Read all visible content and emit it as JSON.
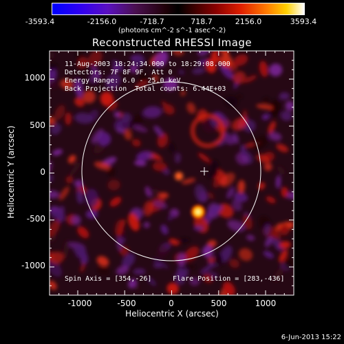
{
  "colorbar": {
    "tick_labels": [
      "-3593.4",
      "-2156.0",
      "-718.7",
      "718.7",
      "2156.0",
      "3593.4"
    ],
    "units": "(photons cm^-2 s^-1 asec^-2)",
    "range": [
      -3593.4,
      3593.4
    ]
  },
  "title": "Reconstructed RHESSI Image",
  "annotations": {
    "time": "11-Aug-2003 18:24:34.000 to 18:29:08.000",
    "detectors": "Detectors: 7F 8F 9F, Att 0",
    "energy": "Energy Range: 6.0 - 25.0 keV",
    "method": "Back Projection",
    "counts": "Total counts: 6.44E+03",
    "spin_axis": "Spin Axis = [354,-26]",
    "flare_position": "Flare Position = [283,-436]"
  },
  "axes": {
    "xlabel": "Heliocentric X (arcsec)",
    "ylabel": "Heliocentric Y (arcsec)",
    "x_ticks": [
      "-1000",
      "-500",
      "0",
      "500",
      "1000"
    ],
    "y_ticks": [
      "1000",
      "500",
      "0",
      "-500",
      "-1000"
    ],
    "x_range": [
      -1300,
      1300
    ],
    "y_range": [
      -1300,
      1300
    ]
  },
  "footer": {
    "date": "6-Jun-2013 15:22"
  },
  "colors": {
    "background": "#000000",
    "foreground": "#ffffff"
  }
}
